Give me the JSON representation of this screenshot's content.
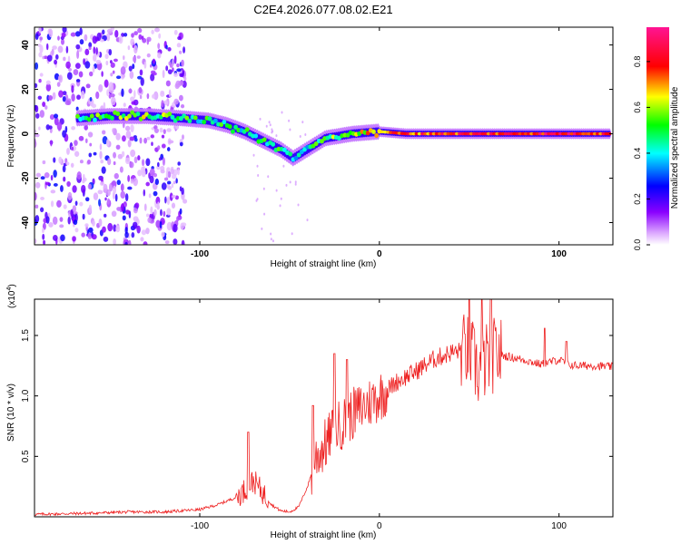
{
  "title": "C2E4.2026.077.08.02.E21",
  "chart_data": [
    {
      "type": "heatmap",
      "name": "spectrogram",
      "xlabel": "Height of straight line (km)",
      "ylabel": "Frequency (Hz)",
      "xlim": [
        -192,
        130
      ],
      "ylim": [
        -50,
        48
      ],
      "x_ticks": [
        -100,
        0,
        100
      ],
      "x_tick_labels": [
        "-100",
        "0",
        "100"
      ],
      "y_ticks": [
        -40,
        -20,
        0,
        20,
        40
      ],
      "y_tick_labels": [
        "-40",
        "-20",
        "0",
        "20",
        "40"
      ],
      "colorbar": {
        "label": "Normalized spectral amplitude",
        "range": [
          0,
          0.95
        ],
        "ticks": [
          0.0,
          0.2,
          0.4,
          0.6,
          0.8
        ],
        "tick_labels": [
          "0.0",
          "0.2",
          "0.4",
          "0.6",
          "0.8"
        ]
      },
      "ridge": [
        {
          "x": -168,
          "f": 7,
          "a": 0.45
        },
        {
          "x": -150,
          "f": 8,
          "a": 0.55
        },
        {
          "x": -130,
          "f": 8,
          "a": 0.55
        },
        {
          "x": -110,
          "f": 7,
          "a": 0.5
        },
        {
          "x": -95,
          "f": 6,
          "a": 0.45
        },
        {
          "x": -85,
          "f": 4,
          "a": 0.45
        },
        {
          "x": -75,
          "f": 1,
          "a": 0.45
        },
        {
          "x": -65,
          "f": -3,
          "a": 0.45
        },
        {
          "x": -55,
          "f": -7,
          "a": 0.45
        },
        {
          "x": -48,
          "f": -11,
          "a": 0.4
        },
        {
          "x": -40,
          "f": -7,
          "a": 0.45
        },
        {
          "x": -30,
          "f": -2,
          "a": 0.5
        },
        {
          "x": -15,
          "f": 0,
          "a": 0.6
        },
        {
          "x": 0,
          "f": 1,
          "a": 0.7
        },
        {
          "x": 15,
          "f": 0,
          "a": 0.75
        },
        {
          "x": 40,
          "f": 0,
          "a": 0.8
        },
        {
          "x": 70,
          "f": 0,
          "a": 0.8
        },
        {
          "x": 100,
          "f": 0,
          "a": 0.85
        },
        {
          "x": 128,
          "f": 0,
          "a": 0.8
        }
      ]
    },
    {
      "type": "line",
      "name": "snr",
      "xlabel": "Height of straight line (km)",
      "ylabel": "SNR (10 * v/v)",
      "multiplier": "(x10",
      "multiplier_exp": "4",
      "multiplier_close": ")",
      "xlim": [
        -192,
        130
      ],
      "ylim": [
        0,
        1.8
      ],
      "x_ticks": [
        -100,
        0,
        100
      ],
      "x_tick_labels": [
        "-100",
        "0",
        "100"
      ],
      "y_ticks": [
        0.5,
        1.0,
        1.5
      ],
      "y_tick_labels": [
        "0.5",
        "1.0",
        "1.5"
      ],
      "series": [
        {
          "name": "SNR",
          "color": "#ee2222",
          "x": [
            -192,
            -160,
            -140,
            -120,
            -100,
            -90,
            -80,
            -75,
            -70,
            -65,
            -60,
            -55,
            -50,
            -45,
            -40,
            -35,
            -30,
            -25,
            -20,
            -15,
            -10,
            -5,
            0,
            10,
            20,
            30,
            40,
            50,
            55,
            60,
            65,
            70,
            80,
            90,
            95,
            100,
            105,
            110,
            120,
            130
          ],
          "values": [
            0.02,
            0.03,
            0.04,
            0.04,
            0.06,
            0.1,
            0.16,
            0.22,
            0.3,
            0.2,
            0.1,
            0.05,
            0.04,
            0.08,
            0.25,
            0.5,
            0.6,
            0.72,
            0.78,
            0.85,
            0.9,
            0.95,
            1.0,
            1.12,
            1.2,
            1.3,
            1.36,
            1.38,
            1.2,
            1.3,
            1.35,
            1.33,
            1.3,
            1.26,
            1.28,
            1.3,
            1.26,
            1.25,
            1.25,
            1.24
          ],
          "spikes": [
            {
              "x": -73,
              "v": 0.7
            },
            {
              "x": -37,
              "v": 0.92
            },
            {
              "x": -25,
              "v": 1.35
            },
            {
              "x": -18,
              "v": 1.3
            },
            {
              "x": 50,
              "v": 1.82
            },
            {
              "x": 57,
              "v": 1.8
            },
            {
              "x": 62,
              "v": 1.82
            },
            {
              "x": 92,
              "v": 1.56
            },
            {
              "x": 104,
              "v": 1.45
            }
          ]
        }
      ]
    }
  ]
}
